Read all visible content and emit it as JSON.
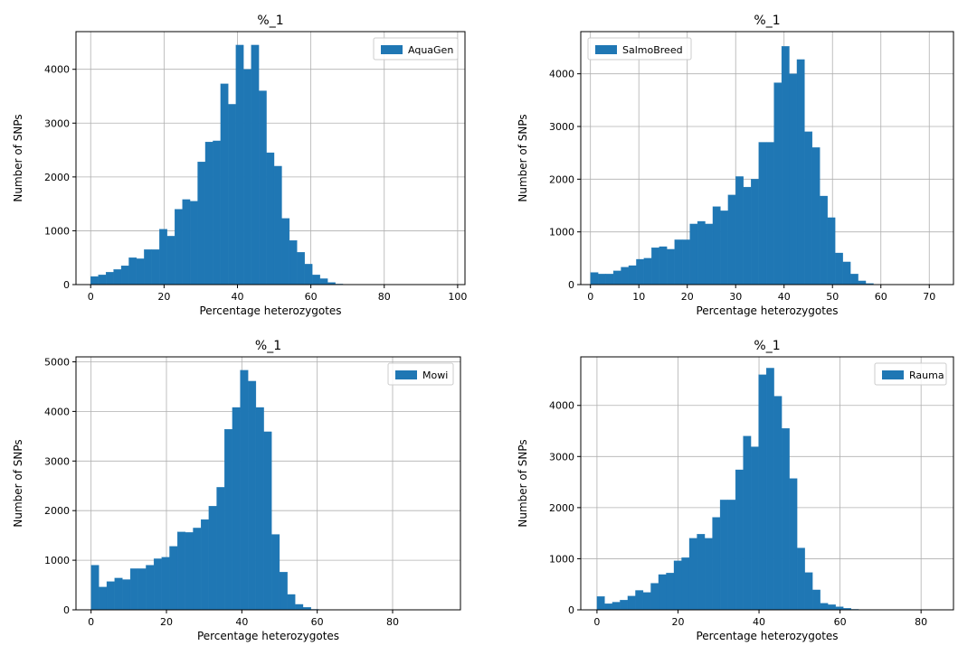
{
  "colors": {
    "bar": "#1f77b4",
    "bar_edge": "#1f77b4",
    "grid": "#b0b0b0",
    "axis": "#000000",
    "legend_edge": "#cccccc"
  },
  "chart_data": [
    {
      "type": "bar",
      "title": "%_1",
      "xlabel": "Percentage heterozygotes",
      "ylabel": "Number of SNPs",
      "legend": "AquaGen",
      "legend_position": "top-right",
      "grid": true,
      "xlim": [
        -4,
        102
      ],
      "ylim": [
        0,
        4700
      ],
      "xticks": [
        0,
        20,
        40,
        60,
        80,
        100
      ],
      "yticks": [
        0,
        1000,
        2000,
        3000,
        4000
      ],
      "bin_width": 2.083,
      "bin_start": 0,
      "values": [
        150,
        180,
        230,
        280,
        350,
        500,
        480,
        650,
        650,
        1030,
        900,
        1400,
        1580,
        1550,
        2280,
        2650,
        2670,
        3730,
        3350,
        4450,
        4000,
        4450,
        3600,
        2450,
        2200,
        1230,
        820,
        600,
        380,
        180,
        110,
        40,
        10,
        0
      ]
    },
    {
      "type": "bar",
      "title": "%_1",
      "xlabel": "Percentage heterozygotes",
      "ylabel": "Number of SNPs",
      "legend": "SalmoBreed",
      "legend_position": "top-left",
      "grid": true,
      "xlim": [
        -2,
        75
      ],
      "ylim": [
        0,
        4800
      ],
      "xticks": [
        0,
        10,
        20,
        30,
        40,
        50,
        60,
        70
      ],
      "yticks": [
        0,
        1000,
        2000,
        3000,
        4000
      ],
      "bin_width": 1.58,
      "bin_start": 0,
      "values": [
        230,
        200,
        200,
        260,
        330,
        360,
        480,
        500,
        700,
        720,
        670,
        850,
        850,
        1150,
        1200,
        1150,
        1480,
        1400,
        1700,
        2050,
        1850,
        2000,
        2700,
        2700,
        3830,
        4520,
        4000,
        4270,
        2900,
        2600,
        1680,
        1270,
        600,
        430,
        200,
        70,
        20,
        0
      ]
    },
    {
      "type": "bar",
      "title": "%_1",
      "xlabel": "Percentage heterozygotes",
      "ylabel": "Number of SNPs",
      "legend": "Mowi",
      "legend_position": "top-right",
      "grid": true,
      "xlim": [
        -4,
        98
      ],
      "ylim": [
        0,
        5100
      ],
      "xticks": [
        0,
        20,
        40,
        60,
        80
      ],
      "yticks": [
        0,
        1000,
        2000,
        3000,
        4000,
        5000
      ],
      "bin_width": 2.083,
      "bin_start": 0,
      "values": [
        900,
        460,
        570,
        640,
        610,
        830,
        830,
        900,
        1030,
        1060,
        1280,
        1570,
        1560,
        1650,
        1820,
        2090,
        2470,
        3640,
        4080,
        4830,
        4610,
        4080,
        3590,
        1520,
        760,
        310,
        110,
        50,
        10,
        0
      ]
    },
    {
      "type": "bar",
      "title": "%_1",
      "xlabel": "Percentage heterozygotes",
      "ylabel": "Number of SNPs",
      "legend": "Rauma",
      "legend_position": "top-right",
      "grid": true,
      "xlim": [
        -4,
        88
      ],
      "ylim": [
        0,
        4950
      ],
      "xticks": [
        0,
        20,
        40,
        60,
        80
      ],
      "yticks": [
        0,
        1000,
        2000,
        3000,
        4000
      ],
      "bin_width": 1.9,
      "bin_start": 0,
      "values": [
        260,
        120,
        150,
        190,
        270,
        380,
        340,
        520,
        690,
        720,
        960,
        1020,
        1400,
        1480,
        1400,
        1810,
        2150,
        2150,
        2740,
        3400,
        3190,
        4600,
        4730,
        4180,
        3550,
        2570,
        1210,
        730,
        390,
        130,
        100,
        60,
        30,
        10,
        0
      ]
    }
  ]
}
